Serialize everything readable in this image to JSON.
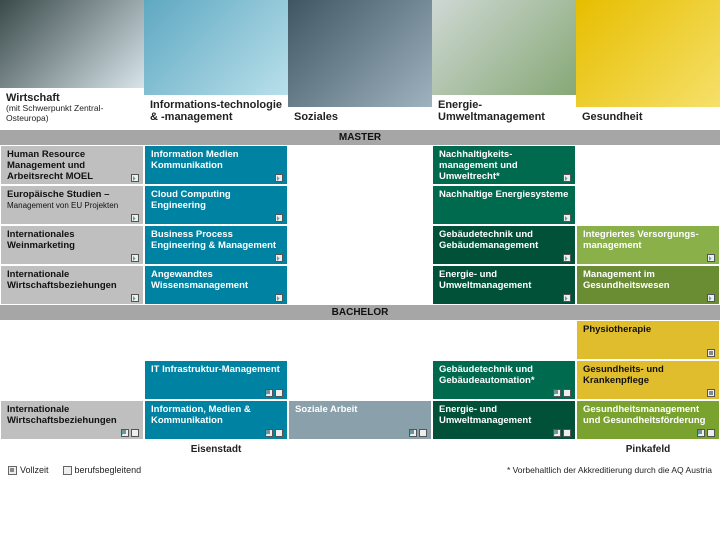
{
  "header": {
    "cols": [
      {
        "title": "Wirtschaft",
        "sub": "(mit Schwerpunkt Zentral-Osteuropa)"
      },
      {
        "title": "Informations-technologie & -management",
        "sub": ""
      },
      {
        "title": "Soziales",
        "sub": ""
      },
      {
        "title": "Energie-Umweltmanagement",
        "sub": ""
      },
      {
        "title": "Gesundheit",
        "sub": ""
      }
    ]
  },
  "bands": {
    "master": "MASTER",
    "bachelor": "BACHELOR"
  },
  "master": {
    "r1": {
      "c1": "Human Resource Management und Arbeitsrecht MOEL",
      "c2": "Information Medien Kommunikation",
      "c4": "Nachhaltigkeits-management und Umweltrecht*"
    },
    "r2": {
      "c1t": "Europäische Studien –",
      "c1s": "Management von EU Projekten",
      "c2": "Cloud Computing Engineering",
      "c4": "Nachhaltige Energiesysteme"
    },
    "r3": {
      "c1": "Internationales Weinmarketing",
      "c2": "Business Process Engineering & Management",
      "c4": "Gebäudetechnik und Gebäudemanagement",
      "c5": "Integriertes Versorgungs-management"
    },
    "r4": {
      "c1": "Internationale Wirtschaftsbeziehungen",
      "c2": "Angewandtes Wissensmanagement",
      "c4": "Energie- und Umweltmanagement",
      "c5": "Management im Gesundheitswesen"
    }
  },
  "bachelor": {
    "r1": {
      "c5": "Physiotherapie"
    },
    "r2": {
      "c2": "IT Infrastruktur-Management",
      "c4": "Gebäudetechnik und Gebäudeautomation*",
      "c5": "Gesundheits- und Krankenpflege"
    },
    "r3": {
      "c1": "Internationale Wirtschaftsbeziehungen",
      "c2": "Information, Medien & Kommunikation",
      "c3": "Soziale Arbeit",
      "c4": "Energie- und Umweltmanagement",
      "c5": "Gesundheitsmanagement und Gesundheitsförderung"
    }
  },
  "locations": {
    "left": "Eisenstadt",
    "right": "Pinkafeld"
  },
  "legend": {
    "vollzeit": "Vollzeit",
    "berufsbegleitend": "berufsbegleitend"
  },
  "footnote": "* Vorbehaltlich der Akkreditierung durch die AQ Austria"
}
